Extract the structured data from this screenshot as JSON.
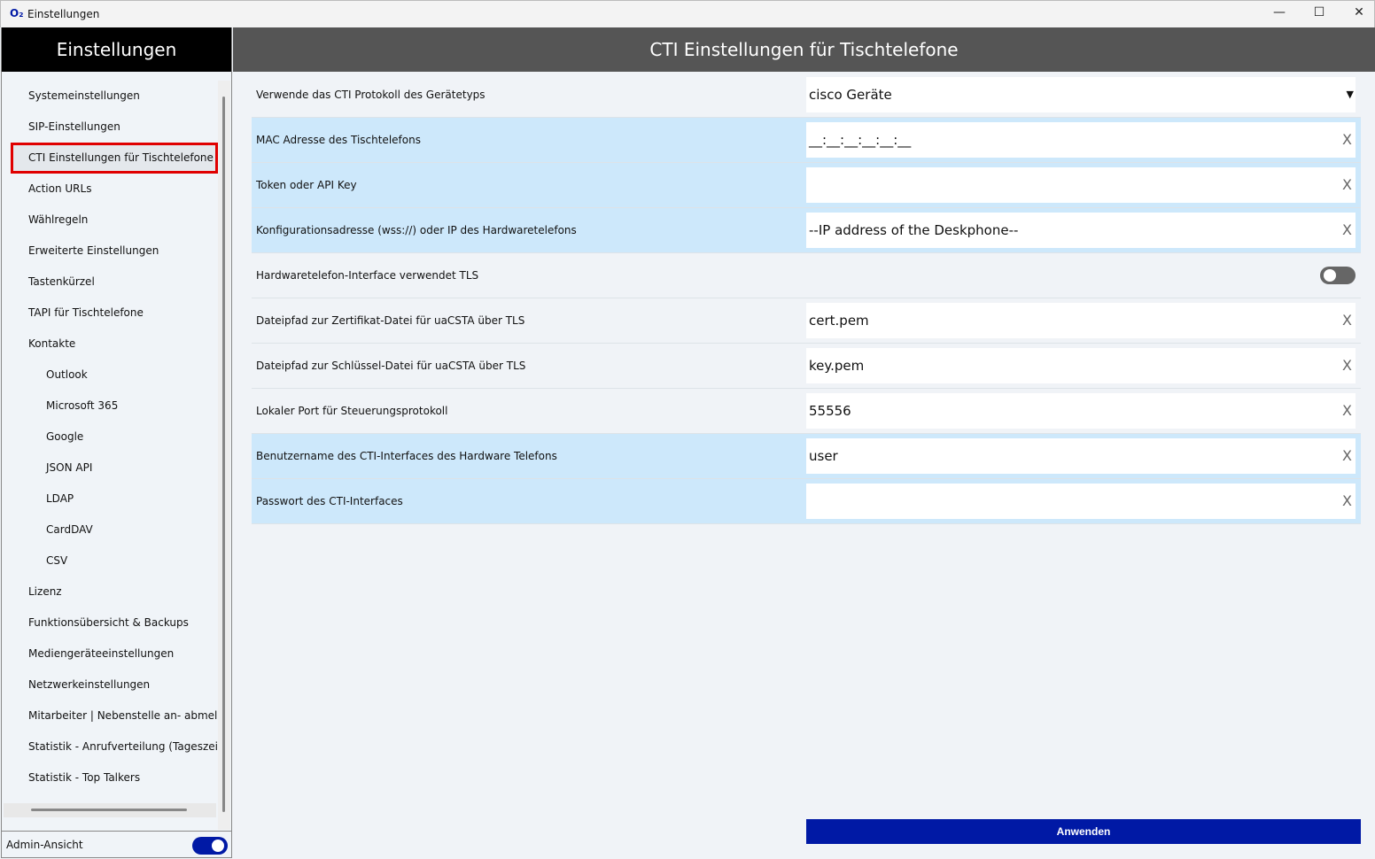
{
  "window": {
    "title": "Einstellungen",
    "logo": "O₂",
    "minimize": "—",
    "maximize": "☐",
    "close": "✕"
  },
  "sidebar": {
    "title": "Einstellungen",
    "items": [
      {
        "label": "Systemeinstellungen"
      },
      {
        "label": "SIP-Einstellungen"
      },
      {
        "label": "CTI Einstellungen für Tischtelefone",
        "selected": true
      },
      {
        "label": "Action URLs"
      },
      {
        "label": "Wählregeln"
      },
      {
        "label": "Erweiterte Einstellungen"
      },
      {
        "label": "Tastenkürzel"
      },
      {
        "label": "TAPI für Tischtelefone"
      },
      {
        "label": "Kontakte"
      },
      {
        "label": "Outlook",
        "sub": true
      },
      {
        "label": "Microsoft 365",
        "sub": true
      },
      {
        "label": "Google",
        "sub": true
      },
      {
        "label": "JSON API",
        "sub": true
      },
      {
        "label": "LDAP",
        "sub": true
      },
      {
        "label": "CardDAV",
        "sub": true
      },
      {
        "label": "CSV",
        "sub": true
      },
      {
        "label": "Lizenz"
      },
      {
        "label": "Funktionsübersicht & Backups"
      },
      {
        "label": "Mediengeräteeinstellungen"
      },
      {
        "label": "Netzwerkeinstellungen"
      },
      {
        "label": "Mitarbeiter | Nebenstelle an- abmelden"
      },
      {
        "label": "Statistik - Anrufverteilung (Tageszeit)"
      },
      {
        "label": "Statistik - Top Talkers"
      }
    ],
    "admin_label": "Admin-Ansicht",
    "admin_on": true
  },
  "main": {
    "title": "CTI Einstellungen für Tischtelefone",
    "rows": [
      {
        "label": "Verwende das CTI Protokoll des Gerätetyps",
        "type": "select",
        "value": "cisco Geräte",
        "highlight": false
      },
      {
        "label": "MAC Adresse des Tischtelefons",
        "type": "text",
        "value": "__:__:__:__:__:__",
        "highlight": true
      },
      {
        "label": "Token oder API Key",
        "type": "text",
        "value": "",
        "highlight": true
      },
      {
        "label": "Konfigurationsadresse (wss://) oder IP des Hardwaretelefons",
        "type": "text",
        "value": "--IP address of the Deskphone--",
        "highlight": true
      },
      {
        "label": "Hardwaretelefon-Interface verwendet TLS",
        "type": "toggle",
        "value": false,
        "highlight": false
      },
      {
        "label": "Dateipfad zur Zertifikat-Datei für uaCSTA über TLS",
        "type": "text",
        "value": "cert.pem",
        "highlight": false
      },
      {
        "label": "Dateipfad zur Schlüssel-Datei für uaCSTA über TLS",
        "type": "text",
        "value": "key.pem",
        "highlight": false
      },
      {
        "label": "Lokaler Port für Steuerungsprotokoll",
        "type": "text",
        "value": "55556",
        "highlight": false
      },
      {
        "label": "Benutzername des CTI-Interfaces des Hardware Telefons",
        "type": "text",
        "value": "user",
        "highlight": true
      },
      {
        "label": "Passwort des CTI-Interfaces",
        "type": "text",
        "value": "",
        "highlight": true
      }
    ],
    "clear_glyph": "X",
    "dropdown_glyph": "▼",
    "apply_label": "Anwenden"
  },
  "colors": {
    "accent": "#0019a5",
    "highlight_row": "#cde8fb",
    "selection_border": "#e00000"
  }
}
